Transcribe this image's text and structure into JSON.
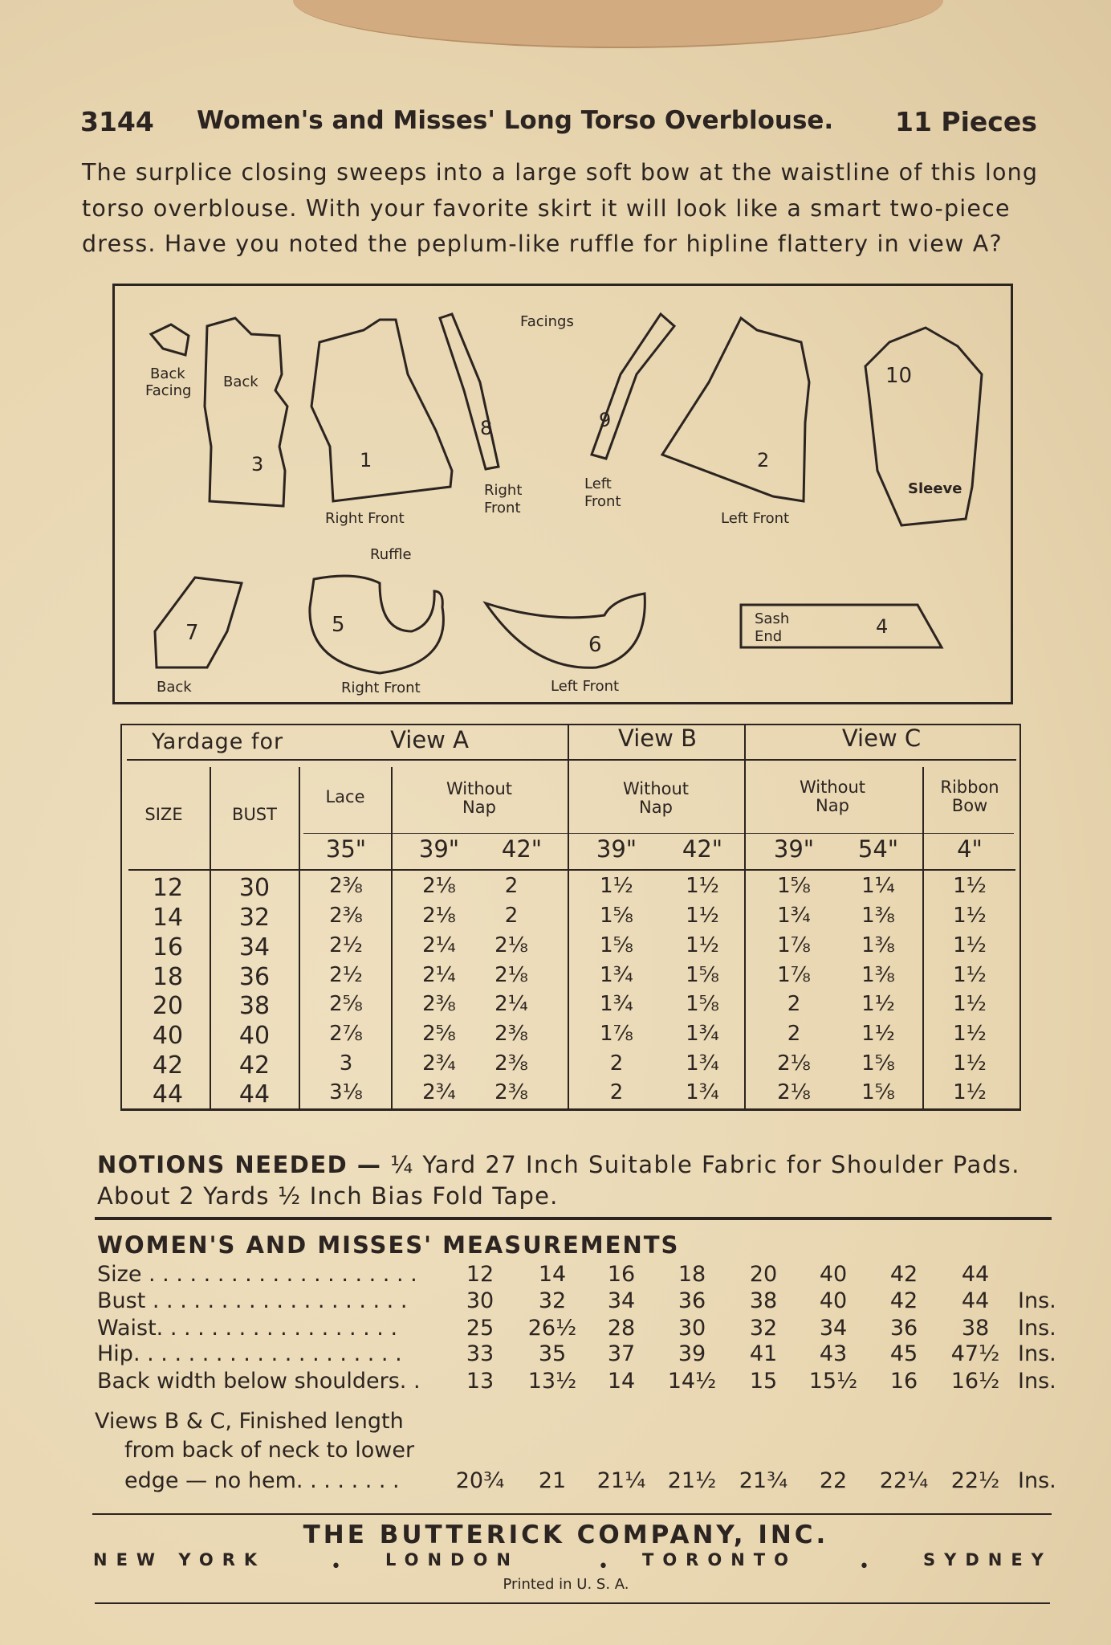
{
  "header": {
    "number": "3144",
    "title": "Women's and Misses' Long Torso Overblouse.",
    "pieces": "11 Pieces"
  },
  "description": [
    "The surplice closing sweeps into a large soft bow at the waistline of this long",
    "torso overblouse. With your favorite skirt it will look like a smart two-piece",
    "dress. Have you noted the peplum-like ruffle for hipline flattery in view A?"
  ],
  "diagram": {
    "back_facing": "Back Facing",
    "back_facing_1": "Back",
    "back_facing_2": "Facing",
    "back": "Back",
    "piece_3": "3",
    "piece_1": "1",
    "right_front": "Right Front",
    "facings": "Facings",
    "piece_8": "8",
    "right_front_facing_1": "Right",
    "right_front_facing_2": "Front",
    "piece_9": "9",
    "left_front_facing_1": "Left",
    "left_front_facing_2": "Front",
    "piece_2": "2",
    "left_front": "Left Front",
    "piece_10": "10",
    "sleeve": "Sleeve",
    "piece_7": "7",
    "back_lower": "Back",
    "ruffle": "Ruffle",
    "piece_5": "5",
    "ruffle_right_front": "Right Front",
    "piece_6": "6",
    "ruffle_left_front": "Left Front",
    "sash_1": "Sash",
    "sash_2": "End",
    "piece_4": "4"
  },
  "yardage": {
    "title": "Yardage for",
    "views": [
      "View A",
      "View B",
      "View C"
    ],
    "size_label": "SIZE",
    "bust_label": "BUST",
    "lace": "Lace",
    "without_nap_1": "Without",
    "without_nap_2": "Nap",
    "ribbon_1": "Ribbon",
    "ribbon_2": "Bow",
    "widths": [
      "35\"",
      "39\"",
      "42\"",
      "39\"",
      "42\"",
      "39\"",
      "54\"",
      "4\""
    ],
    "rows": [
      [
        "12",
        "30",
        "2⅜",
        "2⅛",
        "2",
        "1½",
        "1½",
        "1⅝",
        "1¼",
        "1½"
      ],
      [
        "14",
        "32",
        "2⅜",
        "2⅛",
        "2",
        "1⅝",
        "1½",
        "1¾",
        "1⅜",
        "1½"
      ],
      [
        "16",
        "34",
        "2½",
        "2¼",
        "2⅛",
        "1⅝",
        "1½",
        "1⅞",
        "1⅜",
        "1½"
      ],
      [
        "18",
        "36",
        "2½",
        "2¼",
        "2⅛",
        "1¾",
        "1⅝",
        "1⅞",
        "1⅜",
        "1½"
      ],
      [
        "20",
        "38",
        "2⅝",
        "2⅜",
        "2¼",
        "1¾",
        "1⅝",
        "2",
        "1½",
        "1½"
      ],
      [
        "40",
        "40",
        "2⅞",
        "2⅝",
        "2⅜",
        "1⅞",
        "1¾",
        "2",
        "1½",
        "1½"
      ],
      [
        "42",
        "42",
        "3",
        "2¾",
        "2⅜",
        "2",
        "1¾",
        "2⅛",
        "1⅝",
        "1½"
      ],
      [
        "44",
        "44",
        "3⅛",
        "2¾",
        "2⅜",
        "2",
        "1¾",
        "2⅛",
        "1⅝",
        "1½"
      ]
    ]
  },
  "notions": {
    "label": "NOTIONS NEEDED —",
    "line1": "¼ Yard 27 Inch Suitable Fabric for Shoulder Pads.",
    "line2": "About 2 Yards ½ Inch Bias Fold Tape."
  },
  "measurements": {
    "title": "WOMEN'S AND MISSES' MEASUREMENTS",
    "rows": [
      {
        "label": "Size . . . . . . . . . . . . . . . . . . . .",
        "values": [
          "12",
          "14",
          "16",
          "18",
          "20",
          "40",
          "42",
          "44"
        ],
        "unit": ""
      },
      {
        "label": "Bust . . . . . . . . . . . . . . . . . . .",
        "values": [
          "30",
          "32",
          "34",
          "36",
          "38",
          "40",
          "42",
          "44"
        ],
        "unit": "Ins."
      },
      {
        "label": "Waist. . . . . . . . . . . . . . . . . .",
        "values": [
          "25",
          "26½",
          "28",
          "30",
          "32",
          "34",
          "36",
          "38"
        ],
        "unit": "Ins."
      },
      {
        "label": "Hip. . . . . . . . . . . . . . . . . . . .",
        "values": [
          "33",
          "35",
          "37",
          "39",
          "41",
          "43",
          "45",
          "47½"
        ],
        "unit": "Ins."
      },
      {
        "label": "Back width below shoulders. .",
        "values": [
          "13",
          "13½",
          "14",
          "14½",
          "15",
          "15½",
          "16",
          "16½"
        ],
        "unit": "Ins."
      }
    ],
    "length_label": [
      "Views B & C, Finished length",
      "from back of neck to lower",
      "edge — no hem. . . . . . . ."
    ],
    "length_values": [
      "20¾",
      "21",
      "21¼",
      "21½",
      "21¾",
      "22",
      "22¼",
      "22½"
    ],
    "length_unit": "Ins."
  },
  "footer": {
    "company": "THE BUTTERICK COMPANY, INC.",
    "cities": [
      "NEW YORK",
      "LONDON",
      "TORONTO",
      "SYDNEY"
    ],
    "printed": "Printed in U. S. A."
  }
}
